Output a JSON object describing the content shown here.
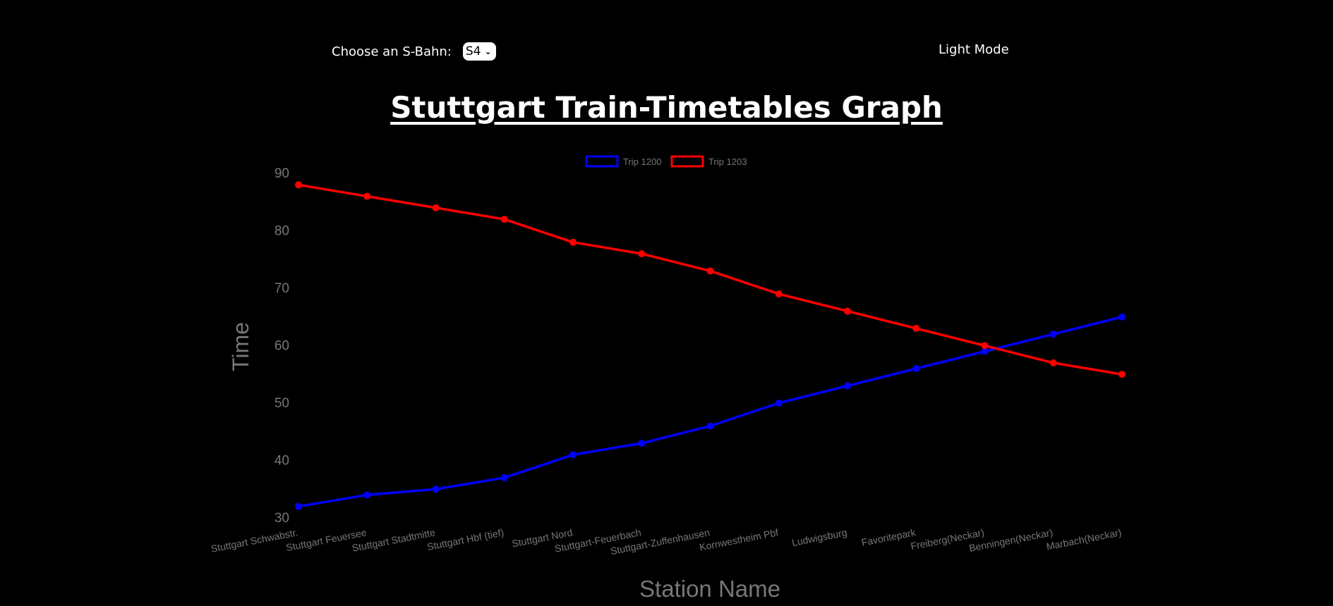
{
  "header": {
    "select_label": "Choose an S-Bahn:",
    "select_value": "S4",
    "mode_toggle_label": "Light Mode"
  },
  "page_title": "Stuttgart Train-Timetables Graph",
  "chart_data": {
    "type": "line",
    "xlabel": "Station Name",
    "ylabel": "Time",
    "ylim": [
      30,
      90
    ],
    "yticks": [
      30,
      40,
      50,
      60,
      70,
      80,
      90
    ],
    "grid": false,
    "legend_position": "top-center",
    "categories": [
      "Stuttgart Schwabstr.",
      "Stuttgart Feuersee",
      "Stuttgart Stadtmitte",
      "Stuttgart Hbf (tief)",
      "Stuttgart Nord",
      "Stuttgart-Feuerbach",
      "Stuttgart-Zuffenhausen",
      "Kornwestheim Pbf",
      "Ludwigsburg",
      "Favoritepark",
      "Freiberg(Neckar)",
      "Benningen(Neckar)",
      "Marbach(Neckar)"
    ],
    "series": [
      {
        "name": "Trip 1200",
        "color": "#0000ff",
        "values": [
          32,
          34,
          35,
          37,
          41,
          43,
          46,
          50,
          53,
          56,
          59,
          62,
          65
        ]
      },
      {
        "name": "Trip 1203",
        "color": "#ff0000",
        "values": [
          88,
          86,
          84,
          82,
          78,
          76,
          73,
          69,
          66,
          63,
          60,
          57,
          55
        ]
      }
    ]
  }
}
